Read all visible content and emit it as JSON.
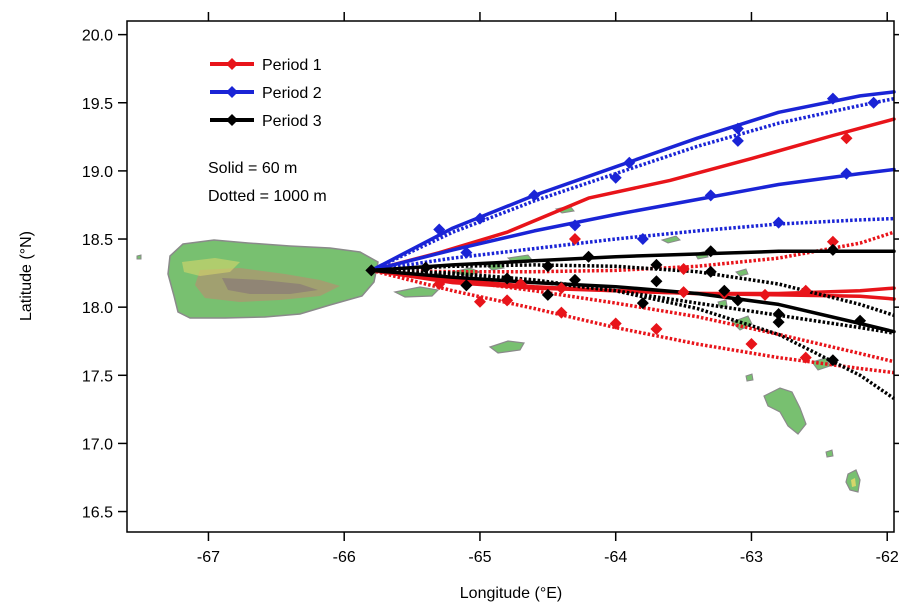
{
  "chart_data": {
    "type": "line",
    "title": "",
    "xlabel": "Longitude (°E)",
    "ylabel": "Latitude (°N)",
    "xlim": [
      -67.6,
      -61.95
    ],
    "ylim": [
      16.35,
      20.1
    ],
    "x_ticks": [
      -67,
      -66,
      -65,
      -64,
      -63,
      -62
    ],
    "x_tick_labels": [
      "-67",
      "-66",
      "-65",
      "-64",
      "-63",
      "-62"
    ],
    "y_ticks": [
      16.5,
      17.0,
      17.5,
      18.0,
      18.5,
      19.0,
      19.5,
      20.0
    ],
    "y_tick_labels": [
      "16.5",
      "17.0",
      "17.5",
      "18.0",
      "18.5",
      "19.0",
      "19.5",
      "20.0"
    ],
    "legend_position": "top-left",
    "grid": false,
    "colors": {
      "Period 1": "#e8141a",
      "Period 2": "#1a24d6",
      "Period 3": "#000000",
      "land": "#72b86a",
      "land_outline": "#808080"
    },
    "annotations": [
      "Solid = 60 m",
      "Dotted = 1000 m"
    ],
    "series": [
      {
        "name": "Period 1",
        "style": "solid",
        "x": [
          -65.8,
          -65.3,
          -64.8,
          -64.2,
          -63.6,
          -63.0,
          -62.4,
          -61.95
        ],
        "y": [
          18.27,
          18.4,
          18.55,
          18.8,
          18.93,
          19.09,
          19.26,
          19.38
        ],
        "markers_x": [
          -64.3,
          -62.3
        ],
        "markers_y": [
          18.5,
          19.24
        ]
      },
      {
        "name": "Period 1",
        "style": "solid",
        "x": [
          -65.8,
          -65.2,
          -64.6,
          -64.0,
          -63.4,
          -62.8,
          -62.2,
          -61.95
        ],
        "y": [
          18.27,
          18.2,
          18.15,
          18.12,
          18.1,
          18.09,
          18.08,
          18.06
        ],
        "markers_x": [
          -65.3,
          -64.7,
          -63.5,
          -62.9
        ],
        "markers_y": [
          18.17,
          18.17,
          18.11,
          18.09
        ]
      },
      {
        "name": "Period 1",
        "style": "solid",
        "x": [
          -65.8,
          -65.2,
          -64.6,
          -64.0,
          -63.4,
          -62.8,
          -62.2,
          -61.95
        ],
        "y": [
          18.27,
          18.18,
          18.14,
          18.12,
          18.1,
          18.1,
          18.12,
          18.14
        ],
        "markers_x": [
          -64.4,
          -63.2,
          -62.6
        ],
        "markers_y": [
          18.14,
          18.1,
          18.12
        ]
      },
      {
        "name": "Period 1",
        "style": "dotted",
        "x": [
          -65.8,
          -65.2,
          -64.6,
          -64.0,
          -63.4,
          -62.8,
          -62.2,
          -61.95
        ],
        "y": [
          18.27,
          18.12,
          17.99,
          17.85,
          17.73,
          17.63,
          17.55,
          17.52
        ],
        "markers_x": [
          -65.0,
          -64.4,
          -63.7,
          -63.0,
          -62.6
        ],
        "markers_y": [
          18.04,
          17.96,
          17.84,
          17.73,
          17.63
        ]
      },
      {
        "name": "Period 1",
        "style": "dotted",
        "x": [
          -65.8,
          -65.2,
          -64.6,
          -64.0,
          -63.4,
          -62.8,
          -62.2,
          -61.95
        ],
        "y": [
          18.27,
          18.2,
          18.12,
          18.03,
          17.93,
          17.8,
          17.66,
          17.6
        ],
        "markers_x": [
          -64.8,
          -64.0
        ],
        "markers_y": [
          18.05,
          17.88
        ]
      },
      {
        "name": "Period 1",
        "style": "dotted",
        "x": [
          -65.8,
          -65.2,
          -64.6,
          -64.0,
          -63.4,
          -62.8,
          -62.2,
          -61.95
        ],
        "y": [
          18.27,
          18.26,
          18.26,
          18.27,
          18.3,
          18.36,
          18.47,
          18.55
        ],
        "markers_x": [
          -63.5,
          -62.4
        ],
        "markers_y": [
          18.28,
          18.48
        ]
      },
      {
        "name": "Period 2",
        "style": "solid",
        "x": [
          -65.8,
          -65.2,
          -64.6,
          -64.0,
          -63.4,
          -62.8,
          -62.2,
          -61.95
        ],
        "y": [
          18.27,
          18.58,
          18.82,
          19.03,
          19.24,
          19.43,
          19.55,
          19.58
        ],
        "markers_x": [
          -65.3,
          -64.6,
          -63.9,
          -63.1,
          -62.4
        ],
        "markers_y": [
          18.57,
          18.82,
          19.06,
          19.31,
          19.53
        ]
      },
      {
        "name": "Period 2",
        "style": "dotted",
        "x": [
          -65.8,
          -65.2,
          -64.6,
          -64.0,
          -63.4,
          -62.8,
          -62.2,
          -61.95
        ],
        "y": [
          18.27,
          18.55,
          18.78,
          18.98,
          19.18,
          19.35,
          19.48,
          19.53
        ],
        "markers_x": [
          -65.0,
          -64.0,
          -63.1,
          -62.1
        ],
        "markers_y": [
          18.65,
          18.95,
          19.22,
          19.5
        ]
      },
      {
        "name": "Period 2",
        "style": "solid",
        "x": [
          -65.8,
          -65.2,
          -64.6,
          -64.0,
          -63.4,
          -62.8,
          -62.2,
          -61.95
        ],
        "y": [
          18.27,
          18.42,
          18.56,
          18.68,
          18.79,
          18.9,
          18.98,
          19.01
        ],
        "markers_x": [
          -65.1,
          -64.3,
          -63.3,
          -62.3
        ],
        "markers_y": [
          18.4,
          18.6,
          18.82,
          18.98
        ]
      },
      {
        "name": "Period 2",
        "style": "dotted",
        "x": [
          -65.8,
          -65.2,
          -64.6,
          -64.0,
          -63.4,
          -62.8,
          -62.2,
          -61.95
        ],
        "y": [
          18.27,
          18.36,
          18.43,
          18.5,
          18.56,
          18.61,
          18.64,
          18.65
        ],
        "markers_x": [
          -63.8,
          -62.8
        ],
        "markers_y": [
          18.5,
          18.62
        ]
      },
      {
        "name": "Period 3",
        "style": "solid",
        "x": [
          -65.8,
          -65.2,
          -64.6,
          -64.0,
          -63.4,
          -62.8,
          -62.2,
          -61.95
        ],
        "y": [
          18.27,
          18.31,
          18.34,
          18.37,
          18.39,
          18.41,
          18.41,
          18.41
        ],
        "markers_x": [
          -65.4,
          -64.5,
          -63.3,
          -62.4
        ],
        "markers_y": [
          18.29,
          18.3,
          18.41,
          18.42
        ]
      },
      {
        "name": "Period 3",
        "style": "solid",
        "x": [
          -65.8,
          -65.2,
          -64.6,
          -64.0,
          -63.4,
          -62.8,
          -62.2,
          -61.95
        ],
        "y": [
          18.27,
          18.22,
          18.18,
          18.15,
          18.1,
          18.02,
          17.88,
          17.82
        ],
        "markers_x": [
          -64.8,
          -64.3,
          -63.7,
          -63.2,
          -62.8,
          -62.2
        ],
        "markers_y": [
          18.21,
          18.2,
          18.19,
          18.12,
          17.95,
          17.9
        ]
      },
      {
        "name": "Period 3",
        "style": "dotted",
        "x": [
          -65.8,
          -65.2,
          -64.6,
          -64.0,
          -63.4,
          -62.8,
          -62.2,
          -61.95
        ],
        "y": [
          18.27,
          18.25,
          18.2,
          18.12,
          17.99,
          17.8,
          17.5,
          17.33
        ],
        "markers_x": [
          -65.1,
          -64.5,
          -63.8,
          -63.1,
          -62.8,
          -62.4
        ],
        "markers_y": [
          18.16,
          18.09,
          18.03,
          18.05,
          17.89,
          17.61
        ]
      },
      {
        "name": "Period 3",
        "style": "dotted",
        "x": [
          -65.8,
          -65.2,
          -64.6,
          -64.0,
          -63.4,
          -62.8,
          -62.2,
          -61.95
        ],
        "y": [
          18.27,
          18.3,
          18.31,
          18.3,
          18.26,
          18.17,
          18.02,
          17.94
        ],
        "markers_x": [
          -64.2,
          -63.7,
          -63.3
        ],
        "markers_y": [
          18.37,
          18.31,
          18.26
        ]
      },
      {
        "name": "Period 3",
        "style": "dotted",
        "x": [
          -65.8,
          -65.2,
          -64.6,
          -64.0,
          -63.4,
          -62.8,
          -62.2,
          -61.95
        ],
        "y": [
          18.27,
          18.24,
          18.19,
          18.12,
          18.03,
          17.94,
          17.85,
          17.81
        ],
        "markers_x": [],
        "markers_y": []
      }
    ]
  }
}
